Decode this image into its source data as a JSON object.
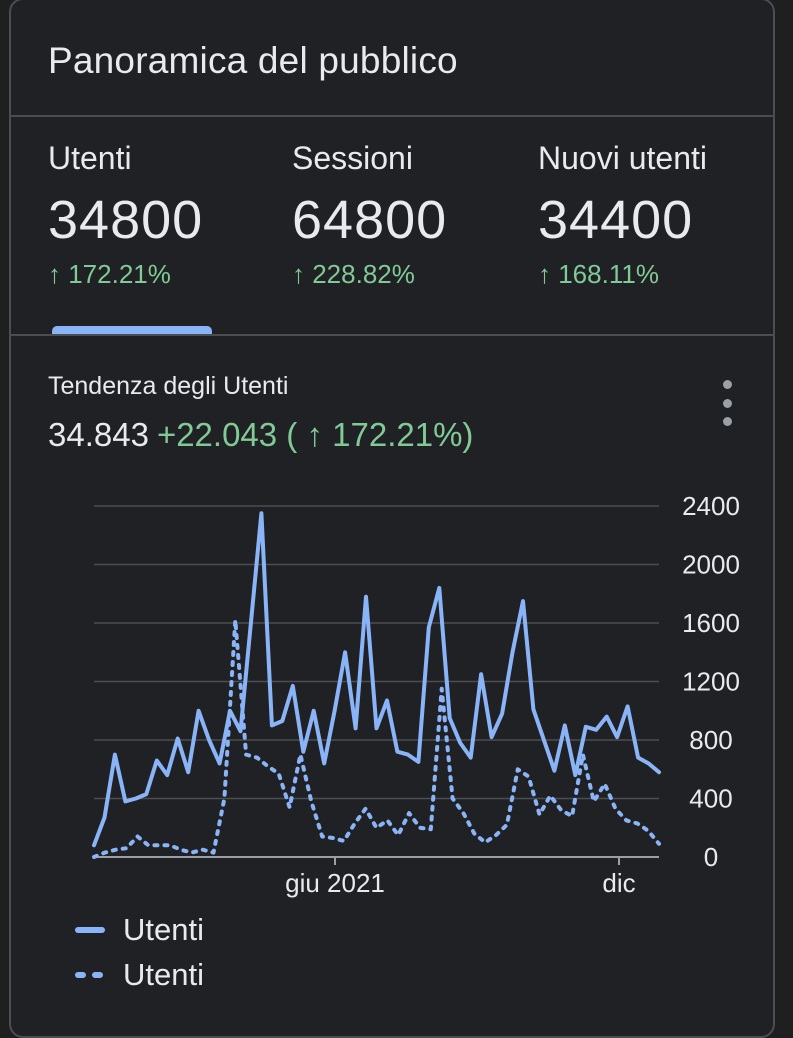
{
  "card": {
    "title": "Panoramica del pubblico"
  },
  "metrics": [
    {
      "label": "Utenti",
      "value": "34800",
      "change": "↑ 172.21%"
    },
    {
      "label": "Sessioni",
      "value": "64800",
      "change": "↑ 228.82%"
    },
    {
      "label": "Nuovi utenti",
      "value": "34400",
      "change": "↑ 168.11%"
    }
  ],
  "selected_tab": "Utenti",
  "trend": {
    "title": "Tendenza degli Utenti",
    "total": "34.843",
    "delta": "+22.043 ( ↑ 172.21%)"
  },
  "colors": {
    "accent": "#8ab4f8",
    "positive": "#81c995",
    "grid": "#5f6368"
  },
  "chart_data": {
    "type": "line",
    "title": "",
    "xlabel": "",
    "ylabel": "",
    "ylim": [
      0,
      2400
    ],
    "y_ticks": [
      "2400",
      "2000",
      "1600",
      "1200",
      "800",
      "400",
      "0"
    ],
    "x_tick_labels": [
      "giu 2021",
      "dic"
    ],
    "grid": true,
    "legend_position": "bottom-left",
    "series": [
      {
        "name": "Utenti",
        "style": "solid",
        "values": [
          80,
          270,
          700,
          380,
          400,
          430,
          660,
          560,
          810,
          580,
          1000,
          800,
          640,
          1000,
          860,
          1600,
          2350,
          900,
          930,
          1170,
          720,
          1000,
          640,
          1000,
          1400,
          880,
          1780,
          880,
          1070,
          720,
          700,
          650,
          1570,
          1840,
          950,
          780,
          680,
          1250,
          820,
          980,
          1400,
          1750,
          1010,
          800,
          590,
          900,
          560,
          890,
          870,
          960,
          820,
          1030,
          680,
          640,
          580
        ]
      },
      {
        "name": "Utenti",
        "style": "dotted",
        "values": [
          0,
          30,
          50,
          60,
          140,
          80,
          80,
          80,
          50,
          30,
          50,
          30,
          400,
          1620,
          700,
          680,
          620,
          570,
          340,
          700,
          380,
          140,
          130,
          110,
          230,
          330,
          200,
          250,
          150,
          300,
          200,
          190,
          1150,
          400,
          300,
          160,
          100,
          150,
          220,
          600,
          550,
          290,
          420,
          320,
          280,
          700,
          380,
          500,
          330,
          250,
          230,
          180,
          90
        ]
      }
    ]
  }
}
